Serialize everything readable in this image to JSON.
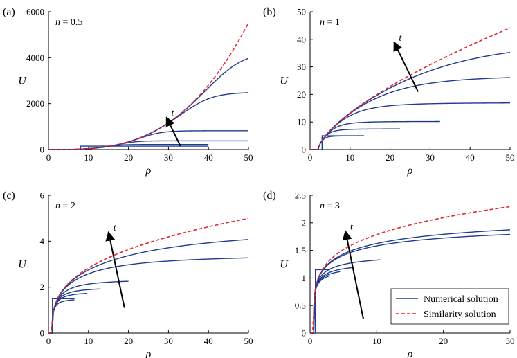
{
  "colors": {
    "numerical": "#1f3b8f",
    "similarity": "#e0262b",
    "arrow": "#000000"
  },
  "legend": {
    "placement": "bottom-right of panel (d)",
    "items": [
      {
        "label": "Numerical solution",
        "style": "solid",
        "color": "#1f3b8f"
      },
      {
        "label": "Similarity solution",
        "style": "dashed",
        "color": "#e0262b"
      }
    ]
  },
  "chart_data": [
    {
      "type": "line",
      "panel": "(a)",
      "annotation": "n = 0.5",
      "arrow_label": "t",
      "xlabel": "ρ",
      "ylabel": "U",
      "xlim": [
        0,
        50
      ],
      "ylim": [
        0,
        6000
      ],
      "xticks": [
        0,
        10,
        20,
        30,
        40,
        50
      ],
      "yticks": [
        0,
        2000,
        4000,
        6000
      ],
      "arrow": {
        "from": [
          33,
          150
        ],
        "to": [
          29.5,
          1400
        ]
      },
      "similarity": {
        "a": 0.0455,
        "p": 3,
        "rho0": 0.5
      },
      "steps": [
        {
          "rho": 8,
          "u": 150
        }
      ],
      "profiles": [
        {
          "end": 40,
          "u_end": 220
        },
        {
          "end": 50,
          "u_end": 380
        },
        {
          "end": 50,
          "u_end": 820
        },
        {
          "end": 50,
          "u_end": 2500
        },
        {
          "end": 50,
          "u_end": 4300
        }
      ]
    },
    {
      "type": "line",
      "panel": "(b)",
      "annotation": "n = 1",
      "arrow_label": "t",
      "xlabel": "ρ",
      "ylabel": "U",
      "xlim": [
        0,
        50
      ],
      "ylim": [
        0,
        50
      ],
      "xticks": [
        0,
        10,
        20,
        30,
        40,
        50
      ],
      "yticks": [
        0,
        10,
        20,
        30,
        40,
        50
      ],
      "arrow": {
        "from": [
          27,
          21
        ],
        "to": [
          21,
          39
        ]
      },
      "similarity": {
        "a": 3.3,
        "p": 0.67,
        "rho0": 2
      },
      "steps": [
        {
          "rho": 3,
          "u": 5
        }
      ],
      "profiles": [
        {
          "end": 13.5,
          "u_end": 5
        },
        {
          "end": 22.5,
          "u_end": 7.5
        },
        {
          "end": 32.5,
          "u_end": 10.2
        },
        {
          "end": 50,
          "u_end": 17
        },
        {
          "end": 50,
          "u_end": 27
        },
        {
          "end": 50,
          "u_end": 40.2
        }
      ]
    },
    {
      "type": "line",
      "panel": "(c)",
      "annotation": "n = 2",
      "arrow_label": "t",
      "xlabel": "ρ",
      "ylabel": "U",
      "xlim": [
        0,
        50
      ],
      "ylim": [
        0,
        6
      ],
      "xticks": [
        0,
        10,
        20,
        30,
        40,
        50
      ],
      "yticks": [
        0,
        2,
        4,
        6
      ],
      "arrow": {
        "from": [
          19,
          1.1
        ],
        "to": [
          15,
          4.4
        ]
      },
      "similarity": {
        "a": 1.35,
        "p": 0.336,
        "rho0": 0.9
      },
      "steps": [
        {
          "rho": 1,
          "u": 1.5
        }
      ],
      "profiles": [
        {
          "end": 6.5,
          "u_end": 1.5
        },
        {
          "end": 9.5,
          "u_end": 1.8
        },
        {
          "end": 13,
          "u_end": 2.0
        },
        {
          "end": 20,
          "u_end": 2.35
        },
        {
          "end": 50,
          "u_end": 3.45
        },
        {
          "end": 50,
          "u_end": 4.72
        }
      ]
    },
    {
      "type": "line",
      "panel": "(d)",
      "annotation": "n = 3",
      "arrow_label": "t",
      "xlabel": "ρ",
      "ylabel": "U",
      "xlim": [
        0,
        30
      ],
      "ylim": [
        0,
        2.5
      ],
      "xticks": [
        0,
        10,
        20,
        30
      ],
      "yticks": [
        0,
        0.5,
        1,
        1.5,
        2,
        2.5
      ],
      "arrow": {
        "from": [
          8,
          0.25
        ],
        "to": [
          5.3,
          1.85
        ]
      },
      "similarity": {
        "a": 1.09,
        "p": 0.22,
        "rho0": 0.55
      },
      "steps": [
        {
          "rho": 0.8,
          "u": 1.15
        }
      ],
      "profiles": [
        {
          "end": 3,
          "u_end": 1.17
        },
        {
          "end": 4.5,
          "u_end": 1.23
        },
        {
          "end": 6.5,
          "u_end": 1.3
        },
        {
          "end": 10.5,
          "u_end": 1.45
        },
        {
          "end": 30,
          "u_end": 2.01
        },
        {
          "end": 30,
          "u_end": 2.17
        }
      ]
    }
  ]
}
